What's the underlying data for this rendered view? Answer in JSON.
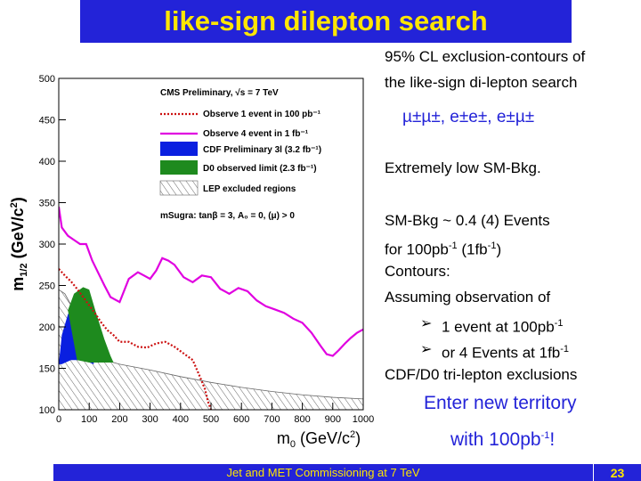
{
  "slide": {
    "title": "like-sign dilepton search",
    "footer": "Jet and MET Commissioning at 7 TeV",
    "page": "23"
  },
  "text": {
    "line1": "95% CL exclusion-contours of",
    "line2": "the like-sign di-lepton search",
    "channels": "µ±µ±, e±e±, e±µ±",
    "low_bkg": "Extremely low SM-Bkg.",
    "bkg_a": "SM-Bkg ~ 0.4 (4) Events",
    "bkg_b1": "for 100pb",
    "bkg_b2": "-1",
    "bkg_b3": " (1fb",
    "bkg_b4": "-1",
    "bkg_b5": ")",
    "contours": "Contours:",
    "assuming": "Assuming observation of",
    "b1a": "1 event at 100pb",
    "b1b": "-1",
    "b2a": "or 4 Events at 1fb",
    "b2b": "-1",
    "cdf": "CDF/D0 tri-lepton exclusions",
    "enter": "Enter new territory",
    "with_a": "with 100pb",
    "with_b": "-1",
    "with_c": "!",
    "bullet_glyph": "➢"
  },
  "colors": {
    "bar": "#2323d8",
    "title_text": "#ffe600",
    "magenta": "#e000e0",
    "red": "#cc1111",
    "cdf": "#0a1fe0",
    "d0": "#1e8a1e"
  },
  "chart_data": {
    "type": "line",
    "xlabel_main": "m",
    "xlabel_sub": "0",
    "xlabel_unit": "(GeV/c",
    "xlabel_sup": "2",
    "xlabel_end": ")",
    "ylabel_main": "m",
    "ylabel_sub": "1/2",
    "ylabel_unit": "(GeV/c",
    "ylabel_sup": "2",
    "ylabel_end": ")",
    "xlim": [
      0,
      1000
    ],
    "ylim": [
      100,
      500
    ],
    "xticks": [
      0,
      100,
      200,
      300,
      400,
      500,
      600,
      700,
      800,
      900,
      1000
    ],
    "yticks": [
      100,
      150,
      200,
      250,
      300,
      350,
      400,
      450,
      500
    ],
    "legend_header": "CMS Preliminary, √s = 7 TeV",
    "legend_footer": "mSugra: tanβ = 3, A₀ = 0, (μ) > 0",
    "series": [
      {
        "name": "Observe 1 event in 100 pb⁻¹",
        "style": "dotted",
        "x": [
          0,
          20,
          40,
          60,
          80,
          100,
          120,
          140,
          160,
          180,
          200,
          230,
          260,
          290,
          320,
          350,
          380,
          410,
          440,
          460,
          480,
          490,
          500
        ],
        "y": [
          270,
          262,
          255,
          246,
          236,
          226,
          216,
          205,
          196,
          190,
          182,
          182,
          176,
          175,
          180,
          182,
          176,
          168,
          160,
          143,
          125,
          110,
          100
        ]
      },
      {
        "name": "Observe 4 event in 1 fb⁻¹",
        "style": "solid",
        "x": [
          0,
          10,
          30,
          50,
          70,
          90,
          110,
          130,
          150,
          170,
          200,
          230,
          260,
          280,
          300,
          320,
          340,
          360,
          380,
          410,
          440,
          470,
          500,
          530,
          560,
          590,
          620,
          650,
          680,
          710,
          740,
          770,
          800,
          830,
          860,
          880,
          900,
          920,
          940,
          960,
          980,
          1000
        ],
        "y": [
          345,
          320,
          310,
          305,
          300,
          300,
          280,
          265,
          250,
          236,
          230,
          258,
          266,
          262,
          258,
          268,
          283,
          280,
          275,
          260,
          254,
          262,
          260,
          246,
          240,
          247,
          243,
          232,
          225,
          221,
          217,
          210,
          205,
          193,
          177,
          167,
          165,
          172,
          180,
          187,
          193,
          197
        ]
      },
      {
        "name": "CDF Preliminary 3l (3.2 fb⁻¹)",
        "style": "fill",
        "x": [
          0,
          10,
          30,
          60,
          90,
          100,
          110,
          115,
          80,
          40,
          10,
          0
        ],
        "y": [
          155,
          190,
          215,
          235,
          245,
          240,
          210,
          155,
          160,
          160,
          155,
          155
        ]
      },
      {
        "name": "D0 observed limit (2.3 fb⁻¹)",
        "style": "fill",
        "x": [
          30,
          50,
          80,
          100,
          120,
          150,
          170,
          180,
          140,
          100,
          60,
          30
        ],
        "y": [
          220,
          240,
          248,
          245,
          220,
          185,
          165,
          157,
          157,
          157,
          160,
          220
        ]
      },
      {
        "name": "LEP excluded regions",
        "style": "hatched",
        "x": [
          0,
          20,
          50,
          100,
          150,
          200,
          300,
          400,
          500,
          600,
          700,
          800,
          900,
          1000,
          1000,
          0
        ],
        "y": [
          245,
          240,
          220,
          175,
          160,
          155,
          148,
          140,
          133,
          127,
          122,
          118,
          115,
          113,
          100,
          100
        ]
      }
    ]
  }
}
